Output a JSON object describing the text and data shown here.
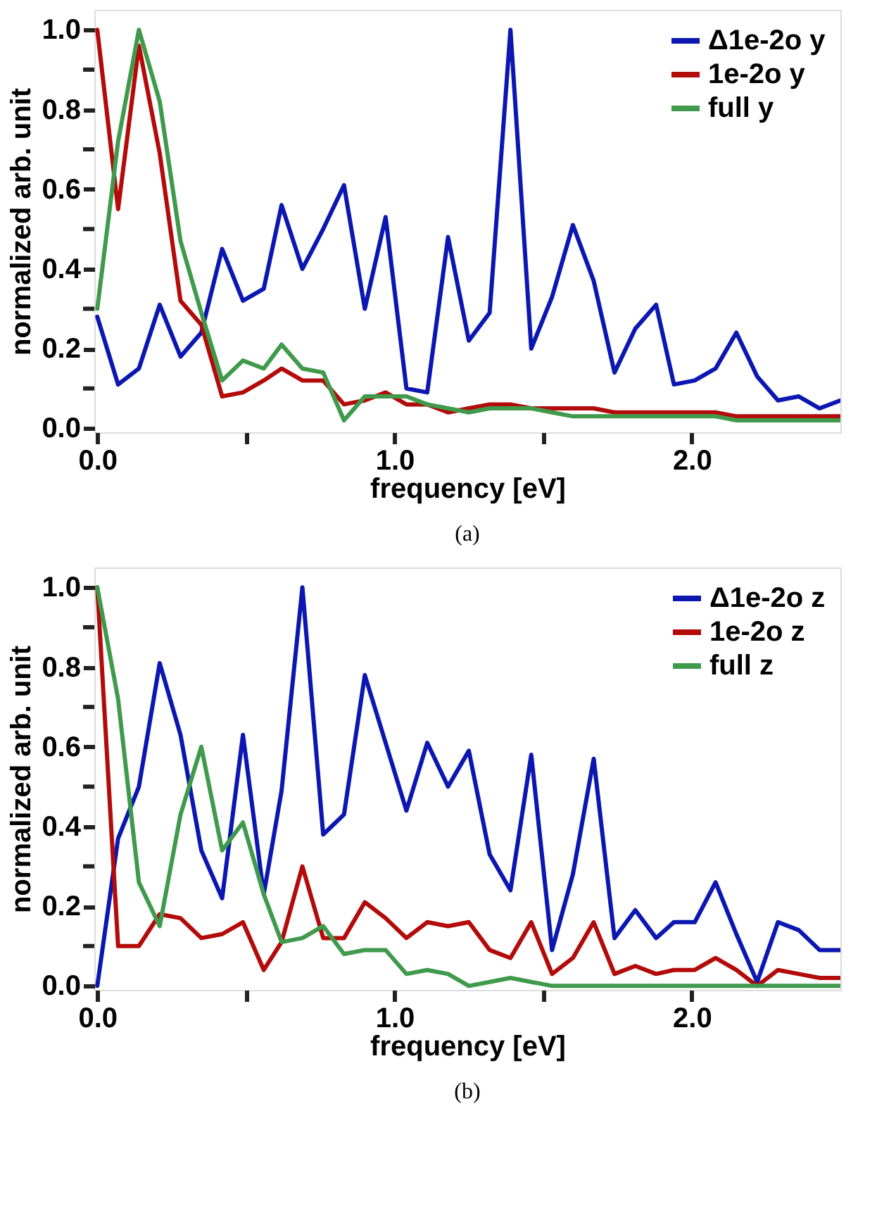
{
  "chart_data": [
    {
      "type": "line",
      "xlabel": "frequency [eV]",
      "ylabel": "normalized arb. unit",
      "annotations": [
        "(a)"
      ],
      "x": [
        0,
        0.07,
        0.14,
        0.21,
        0.28,
        0.35,
        0.42,
        0.49,
        0.56,
        0.62,
        0.69,
        0.76,
        0.83,
        0.9,
        0.97,
        1.04,
        1.11,
        1.18,
        1.25,
        1.32,
        1.39,
        1.46,
        1.53,
        1.6,
        1.67,
        1.74,
        1.81,
        1.88,
        1.94,
        2.01,
        2.08,
        2.15,
        2.22,
        2.29,
        2.36,
        2.43,
        2.5
      ],
      "series": [
        {
          "name": "Δ1e-2o y",
          "color": "#0b17b0",
          "values": [
            0.28,
            0.11,
            0.15,
            0.31,
            0.18,
            0.24,
            0.45,
            0.32,
            0.35,
            0.56,
            0.4,
            0.5,
            0.61,
            0.3,
            0.53,
            0.1,
            0.09,
            0.48,
            0.22,
            0.29,
            1.0,
            0.2,
            0.33,
            0.51,
            0.37,
            0.14,
            0.25,
            0.31,
            0.11,
            0.12,
            0.15,
            0.24,
            0.13,
            0.07,
            0.08,
            0.05,
            0.07
          ]
        },
        {
          "name": "1e-2o y",
          "color": "#b30a0a",
          "values": [
            1.0,
            0.55,
            0.96,
            0.69,
            0.32,
            0.26,
            0.08,
            0.09,
            0.12,
            0.15,
            0.12,
            0.12,
            0.06,
            0.07,
            0.09,
            0.06,
            0.06,
            0.04,
            0.05,
            0.06,
            0.06,
            0.05,
            0.05,
            0.05,
            0.05,
            0.04,
            0.04,
            0.04,
            0.04,
            0.04,
            0.04,
            0.03,
            0.03,
            0.03,
            0.03,
            0.03,
            0.03
          ]
        },
        {
          "name": "full y",
          "color": "#3f9a4c",
          "values": [
            0.3,
            0.72,
            1.0,
            0.82,
            0.47,
            0.29,
            0.12,
            0.17,
            0.15,
            0.21,
            0.15,
            0.14,
            0.02,
            0.08,
            0.08,
            0.08,
            0.06,
            0.05,
            0.04,
            0.05,
            0.05,
            0.05,
            0.04,
            0.03,
            0.03,
            0.03,
            0.03,
            0.03,
            0.03,
            0.03,
            0.03,
            0.02,
            0.02,
            0.02,
            0.02,
            0.02,
            0.02
          ]
        }
      ],
      "xlim": [
        -0.01,
        2.5
      ],
      "xticks": [
        {
          "value": 0,
          "label": "0.0"
        },
        {
          "value": 0.5,
          "label": null
        },
        {
          "value": 1,
          "label": "1.0"
        },
        {
          "value": 1.5,
          "label": null
        },
        {
          "value": 2,
          "label": "2.0"
        }
      ],
      "ylim": [
        -0.01,
        1.05
      ],
      "yticks": [
        {
          "value": 0,
          "label": "0.0"
        },
        {
          "value": 0.1,
          "label": null
        },
        {
          "value": 0.2,
          "label": "0.2"
        },
        {
          "value": 0.3,
          "label": null
        },
        {
          "value": 0.4,
          "label": "0.4"
        },
        {
          "value": 0.5,
          "label": null
        },
        {
          "value": 0.6,
          "label": "0.6"
        },
        {
          "value": 0.7,
          "label": null
        },
        {
          "value": 0.8,
          "label": "0.8"
        },
        {
          "value": 0.9,
          "label": null
        },
        {
          "value": 1,
          "label": "1.0"
        }
      ],
      "grid": false,
      "legend": "top right",
      "marker": "none",
      "line_style": "solid"
    },
    {
      "type": "line",
      "xlabel": "frequency [eV]",
      "ylabel": "normalized arb. unit",
      "annotations": [
        "(b)"
      ],
      "x": [
        0,
        0.07,
        0.14,
        0.21,
        0.28,
        0.35,
        0.42,
        0.49,
        0.56,
        0.62,
        0.69,
        0.76,
        0.83,
        0.9,
        0.97,
        1.04,
        1.11,
        1.18,
        1.25,
        1.32,
        1.39,
        1.46,
        1.53,
        1.6,
        1.67,
        1.74,
        1.81,
        1.88,
        1.94,
        2.01,
        2.08,
        2.15,
        2.22,
        2.29,
        2.36,
        2.43,
        2.5
      ],
      "series": [
        {
          "name": "Δ1e-2o z",
          "color": "#0b17b0",
          "values": [
            0.0,
            0.37,
            0.5,
            0.81,
            0.63,
            0.34,
            0.22,
            0.63,
            0.23,
            0.49,
            1.0,
            0.38,
            0.43,
            0.78,
            0.61,
            0.44,
            0.61,
            0.5,
            0.59,
            0.33,
            0.24,
            0.58,
            0.09,
            0.28,
            0.57,
            0.12,
            0.19,
            0.12,
            0.16,
            0.16,
            0.26,
            0.13,
            0.01,
            0.16,
            0.14,
            0.09,
            0.09
          ]
        },
        {
          "name": "1e-2o z",
          "color": "#b30a0a",
          "values": [
            1.0,
            0.1,
            0.1,
            0.18,
            0.17,
            0.12,
            0.13,
            0.16,
            0.04,
            0.11,
            0.3,
            0.12,
            0.12,
            0.21,
            0.17,
            0.12,
            0.16,
            0.15,
            0.16,
            0.09,
            0.07,
            0.16,
            0.03,
            0.07,
            0.16,
            0.03,
            0.05,
            0.03,
            0.04,
            0.04,
            0.07,
            0.04,
            0.0,
            0.04,
            0.03,
            0.02,
            0.02
          ]
        },
        {
          "name": "full z",
          "color": "#3f9a4c",
          "values": [
            1.0,
            0.72,
            0.26,
            0.15,
            0.43,
            0.6,
            0.34,
            0.41,
            0.23,
            0.11,
            0.12,
            0.15,
            0.08,
            0.09,
            0.09,
            0.03,
            0.04,
            0.03,
            0.0,
            0.01,
            0.02,
            0.01,
            0.0,
            0.0,
            0.0,
            0.0,
            0.0,
            0.0,
            0.0,
            0.0,
            0.0,
            0.0,
            0.0,
            0.0,
            0.0,
            0.0,
            0.0
          ]
        }
      ],
      "xlim": [
        -0.01,
        2.5
      ],
      "xticks": [
        {
          "value": 0,
          "label": "0.0"
        },
        {
          "value": 0.5,
          "label": null
        },
        {
          "value": 1,
          "label": "1.0"
        },
        {
          "value": 1.5,
          "label": null
        },
        {
          "value": 2,
          "label": "2.0"
        }
      ],
      "ylim": [
        -0.01,
        1.05
      ],
      "yticks": [
        {
          "value": 0,
          "label": "0.0"
        },
        {
          "value": 0.1,
          "label": null
        },
        {
          "value": 0.2,
          "label": "0.2"
        },
        {
          "value": 0.3,
          "label": null
        },
        {
          "value": 0.4,
          "label": "0.4"
        },
        {
          "value": 0.5,
          "label": null
        },
        {
          "value": 0.6,
          "label": "0.6"
        },
        {
          "value": 0.7,
          "label": null
        },
        {
          "value": 0.8,
          "label": "0.8"
        },
        {
          "value": 0.9,
          "label": null
        },
        {
          "value": 1,
          "label": "1.0"
        }
      ],
      "grid": false,
      "legend": "top right",
      "marker": "none",
      "line_style": "solid"
    }
  ]
}
